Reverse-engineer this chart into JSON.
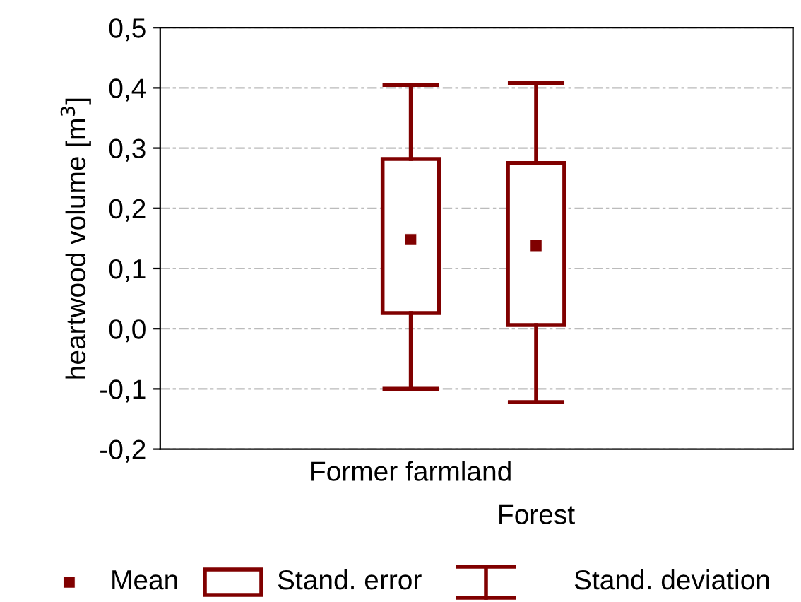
{
  "chart_data": {
    "type": "box",
    "ylabel": "heartwood volume [m$^{3}$]",
    "categories": [
      "Former farmland",
      "Forest"
    ],
    "ylim": [
      -0.2,
      0.5
    ],
    "yticks": [
      {
        "value": -0.2,
        "label": "-0,2"
      },
      {
        "value": -0.1,
        "label": "-0,1"
      },
      {
        "value": 0.0,
        "label": "0,0"
      },
      {
        "value": 0.1,
        "label": "0,1"
      },
      {
        "value": 0.2,
        "label": "0,2"
      },
      {
        "value": 0.3,
        "label": "0,3"
      },
      {
        "value": 0.4,
        "label": "0,4"
      },
      {
        "value": 0.5,
        "label": "0,5"
      }
    ],
    "grid": "y",
    "marker": "square",
    "series": [
      {
        "color": "#800000",
        "boxes": [
          {
            "low": -0.1,
            "q1": 0.026,
            "q3": 0.282,
            "high": 0.405,
            "mean": 0.148
          },
          {
            "low": -0.122,
            "q1": 0.006,
            "q3": 0.275,
            "high": 0.408,
            "mean": 0.138
          }
        ]
      }
    ],
    "annotations": [
      "Mean",
      "Stand. error",
      "Stand. deviation"
    ]
  }
}
